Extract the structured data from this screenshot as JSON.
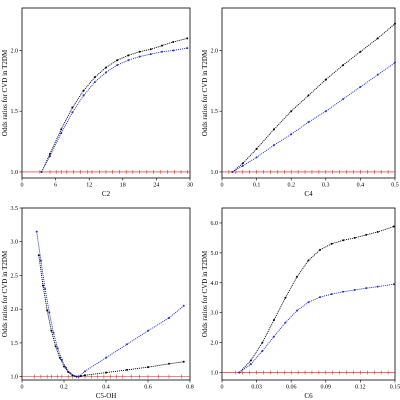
{
  "chart_data": [
    {
      "type": "line",
      "xlabel": "C2",
      "ylabel": "Odds ratios for CVD in T2DM",
      "xlim": [
        0,
        30
      ],
      "ylim": [
        0.95,
        2.35
      ],
      "xticks": [
        0,
        6,
        12,
        18,
        24,
        30
      ],
      "xtick_labels": [
        "0",
        "6",
        "12",
        "18",
        "24",
        "30"
      ],
      "yticks": [
        1.0,
        1.5,
        2.0
      ],
      "ytick_labels": [
        "1.0",
        "1.5",
        "2.0"
      ],
      "reference_y": 1.0,
      "series": [
        {
          "color": "#000000",
          "x": [
            3.5,
            5,
            7,
            9,
            11,
            13,
            15,
            17,
            19,
            21,
            23,
            25,
            27,
            29.5
          ],
          "y": [
            1.0,
            1.15,
            1.35,
            1.53,
            1.67,
            1.78,
            1.86,
            1.92,
            1.96,
            1.99,
            2.01,
            2.04,
            2.07,
            2.1
          ]
        },
        {
          "color": "#1c2fd6",
          "x": [
            3.5,
            5,
            7,
            9,
            11,
            13,
            15,
            17,
            19,
            21,
            23,
            25,
            27,
            29.5
          ],
          "y": [
            1.0,
            1.13,
            1.32,
            1.49,
            1.63,
            1.74,
            1.82,
            1.88,
            1.92,
            1.95,
            1.97,
            1.99,
            2.0,
            2.02
          ]
        }
      ],
      "rug_x": [
        3.2,
        5,
        6.1,
        7,
        8,
        9.2,
        10.4,
        11.7,
        12.5,
        13.8,
        15,
        16.2,
        17.4,
        18.6,
        19.8,
        21,
        22.3,
        23.5,
        24.8,
        26,
        27.2,
        28.4,
        29.6
      ]
    },
    {
      "type": "line",
      "xlabel": "C4",
      "ylabel": "Odds ratios for CVD in T2DM",
      "xlim": [
        0,
        0.5
      ],
      "ylim": [
        0.95,
        2.35
      ],
      "xticks": [
        0,
        0.1,
        0.2,
        0.3,
        0.4,
        0.5
      ],
      "xtick_labels": [
        "0",
        "0.1",
        "0.2",
        "0.3",
        "0.4",
        "0.5"
      ],
      "yticks": [
        1.0,
        1.5,
        2.0
      ],
      "ytick_labels": [
        "1.0",
        "1.5",
        "2.0"
      ],
      "reference_y": 1.0,
      "series": [
        {
          "color": "#000000",
          "x": [
            0.03,
            0.06,
            0.1,
            0.15,
            0.2,
            0.25,
            0.3,
            0.35,
            0.4,
            0.45,
            0.5
          ],
          "y": [
            1.0,
            1.07,
            1.19,
            1.35,
            1.5,
            1.63,
            1.76,
            1.88,
            1.99,
            2.1,
            2.22
          ]
        },
        {
          "color": "#1c2fd6",
          "x": [
            0.03,
            0.06,
            0.1,
            0.15,
            0.2,
            0.25,
            0.3,
            0.35,
            0.4,
            0.45,
            0.5
          ],
          "y": [
            1.0,
            1.05,
            1.12,
            1.22,
            1.31,
            1.41,
            1.5,
            1.6,
            1.7,
            1.8,
            1.9
          ]
        }
      ],
      "rug_x": [
        0.02,
        0.04,
        0.06,
        0.08,
        0.1,
        0.12,
        0.14,
        0.16,
        0.18,
        0.2,
        0.22,
        0.24,
        0.26,
        0.28,
        0.3,
        0.32,
        0.34,
        0.36,
        0.38,
        0.4,
        0.42,
        0.44,
        0.46,
        0.48
      ]
    },
    {
      "type": "line",
      "xlabel": "C5-OH",
      "ylabel": "Odds ratios for CVD in T2DM",
      "xlim": [
        0,
        0.8
      ],
      "ylim": [
        0.95,
        3.5
      ],
      "xticks": [
        0,
        0.2,
        0.4,
        0.6,
        0.8
      ],
      "xtick_labels": [
        "0",
        "0.2",
        "0.4",
        "0.6",
        "0.8"
      ],
      "yticks": [
        1.0,
        1.5,
        2.0,
        2.5,
        3.0,
        3.5
      ],
      "ytick_labels": [
        "1.0",
        "1.5",
        "2.0",
        "2.5",
        "3.0",
        "3.5"
      ],
      "reference_y": 1.0,
      "series": [
        {
          "color": "#000000",
          "x": [
            0.08,
            0.1,
            0.12,
            0.14,
            0.16,
            0.18,
            0.2,
            0.22,
            0.24,
            0.26,
            0.28,
            0.3,
            0.4,
            0.5,
            0.6,
            0.7,
            0.77
          ],
          "y": [
            2.8,
            2.35,
            1.98,
            1.68,
            1.45,
            1.28,
            1.15,
            1.07,
            1.02,
            1.0,
            1.01,
            1.02,
            1.06,
            1.1,
            1.14,
            1.19,
            1.22
          ]
        },
        {
          "color": "#1c2fd6",
          "x": [
            0.07,
            0.09,
            0.11,
            0.13,
            0.15,
            0.17,
            0.19,
            0.21,
            0.23,
            0.25,
            0.27,
            0.3,
            0.4,
            0.5,
            0.6,
            0.7,
            0.77
          ],
          "y": [
            3.15,
            2.72,
            2.3,
            1.95,
            1.65,
            1.42,
            1.25,
            1.13,
            1.05,
            1.01,
            1.0,
            1.08,
            1.28,
            1.48,
            1.68,
            1.87,
            2.05
          ]
        }
      ],
      "rug_x": [
        0.06,
        0.09,
        0.12,
        0.14,
        0.17,
        0.19,
        0.22,
        0.24,
        0.27,
        0.3,
        0.33,
        0.36,
        0.39,
        0.42,
        0.45,
        0.48,
        0.52,
        0.56,
        0.6,
        0.65,
        0.7,
        0.76
      ]
    },
    {
      "type": "line",
      "xlabel": "C6",
      "ylabel": "Odds ratios for CVD in T2DM",
      "xlim": [
        0,
        0.15
      ],
      "ylim": [
        0.75,
        6.5
      ],
      "xticks": [
        0,
        0.03,
        0.06,
        0.09,
        0.12,
        0.15
      ],
      "xtick_labels": [
        "0",
        "0.03",
        "0.06",
        "0.09",
        "0.12",
        "0.15"
      ],
      "yticks": [
        1.0,
        2.0,
        3.0,
        4.0,
        5.0,
        6.0
      ],
      "ytick_labels": [
        "1.0",
        "2.0",
        "3.0",
        "4.0",
        "5.0",
        "6.0"
      ],
      "reference_y": 1.0,
      "series": [
        {
          "color": "#000000",
          "x": [
            0.015,
            0.025,
            0.035,
            0.045,
            0.055,
            0.065,
            0.075,
            0.085,
            0.095,
            0.105,
            0.115,
            0.125,
            0.135,
            0.149
          ],
          "y": [
            1.0,
            1.4,
            2.0,
            2.75,
            3.5,
            4.2,
            4.75,
            5.1,
            5.3,
            5.42,
            5.5,
            5.6,
            5.7,
            5.88
          ]
        },
        {
          "color": "#1c2fd6",
          "x": [
            0.015,
            0.025,
            0.035,
            0.045,
            0.055,
            0.065,
            0.075,
            0.085,
            0.095,
            0.105,
            0.115,
            0.125,
            0.135,
            0.149
          ],
          "y": [
            1.0,
            1.28,
            1.72,
            2.2,
            2.67,
            3.07,
            3.35,
            3.52,
            3.62,
            3.7,
            3.76,
            3.82,
            3.87,
            3.95
          ]
        }
      ],
      "rug_x": [
        0.012,
        0.018,
        0.024,
        0.03,
        0.036,
        0.042,
        0.048,
        0.054,
        0.06,
        0.066,
        0.072,
        0.078,
        0.084,
        0.09,
        0.096,
        0.102,
        0.108,
        0.114,
        0.12,
        0.126,
        0.132,
        0.138,
        0.144
      ]
    }
  ]
}
